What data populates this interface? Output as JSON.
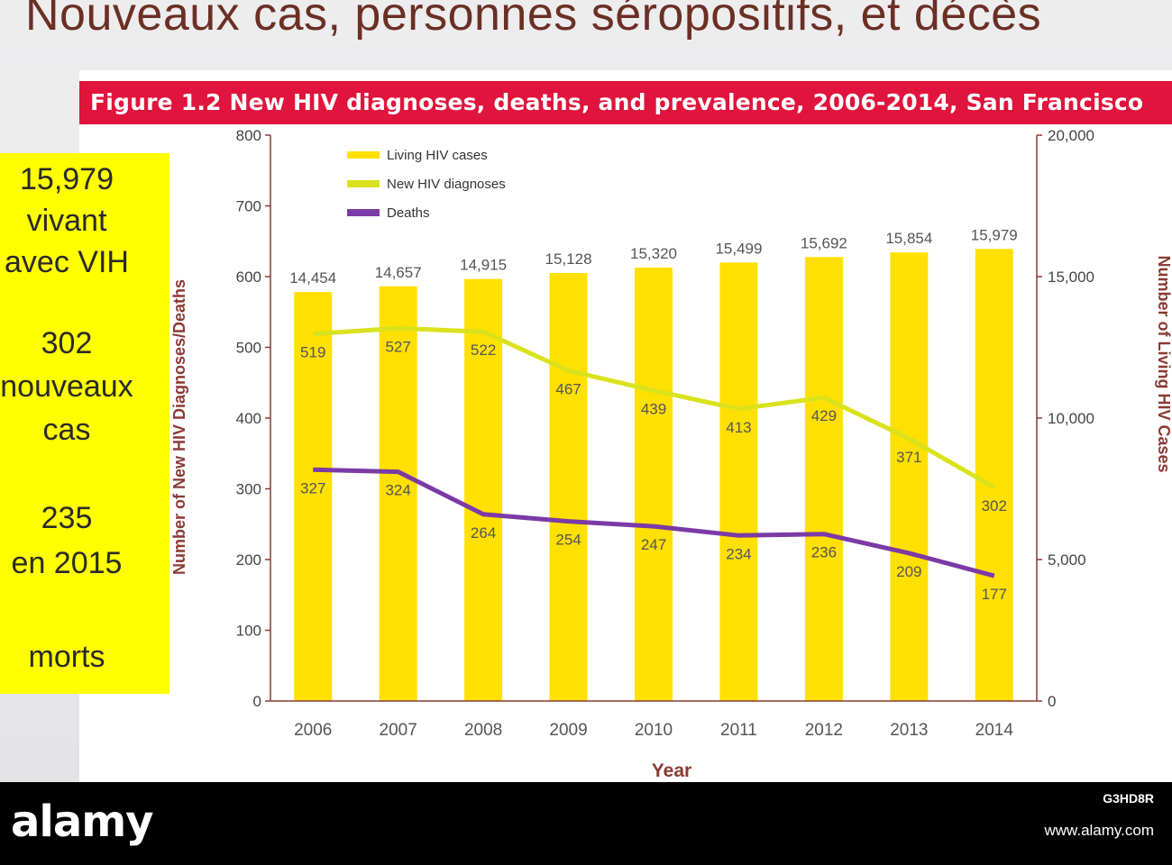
{
  "slide": {
    "title": "Nouveaux cas, personnes séropositifs, et décès"
  },
  "figure": {
    "title": "Figure 1.2  New HIV diagnoses, deaths, and prevalence, 2006-2014, San Francisco"
  },
  "summary": {
    "lines": [
      "15,979",
      "vivant",
      "avec VIH",
      "302",
      "nouveaux",
      "cas",
      "235",
      "en 2015",
      "morts"
    ]
  },
  "watermark": {
    "logo": "alamy",
    "image_id": "G3HD8R",
    "url": "www.alamy.com"
  },
  "colors": {
    "living": "#ffe000",
    "diagnoses": "#d9e21c",
    "deaths": "#7b3aa6",
    "axis": "#8a3a33",
    "header": "#e0143c",
    "summary_box": "#ffff00"
  },
  "chart_data": {
    "type": "bar",
    "title": "Figure 1.2  New HIV diagnoses, deaths, and prevalence, 2006-2014, San Francisco",
    "xlabel": "Year",
    "ylabel": "Number of New HIV Diagnoses/Deaths",
    "y2label": "Number of Living HIV Cases",
    "categories": [
      "2006",
      "2007",
      "2008",
      "2009",
      "2010",
      "2011",
      "2012",
      "2013",
      "2014"
    ],
    "ylim": [
      0,
      800
    ],
    "y_ticks": [
      "0",
      "100",
      "200",
      "300",
      "400",
      "500",
      "600",
      "700",
      "800"
    ],
    "y2lim": [
      0,
      20000
    ],
    "y2_ticks": [
      "0",
      "5,000",
      "10,000",
      "15,000",
      "20,000"
    ],
    "legend_position": "top-left",
    "series": [
      {
        "name": "Living HIV cases",
        "type": "bar",
        "axis": "right",
        "values": [
          14454,
          14657,
          14915,
          15128,
          15320,
          15499,
          15692,
          15854,
          15979
        ],
        "labels": [
          "14,454",
          "14,657",
          "14,915",
          "15,128",
          "15,320",
          "15,499",
          "15,692",
          "15,854",
          "15,979"
        ]
      },
      {
        "name": "New HIV diagnoses",
        "type": "line",
        "axis": "left",
        "values": [
          519,
          527,
          522,
          467,
          439,
          413,
          429,
          371,
          302
        ],
        "labels": [
          "519",
          "527",
          "522",
          "467",
          "439",
          "413",
          "429",
          "371",
          "302"
        ]
      },
      {
        "name": "Deaths",
        "type": "line",
        "axis": "left",
        "values": [
          327,
          324,
          264,
          254,
          247,
          234,
          236,
          209,
          177
        ],
        "labels": [
          "327",
          "324",
          "264",
          "254",
          "247",
          "234",
          "236",
          "209",
          "177"
        ]
      }
    ]
  }
}
